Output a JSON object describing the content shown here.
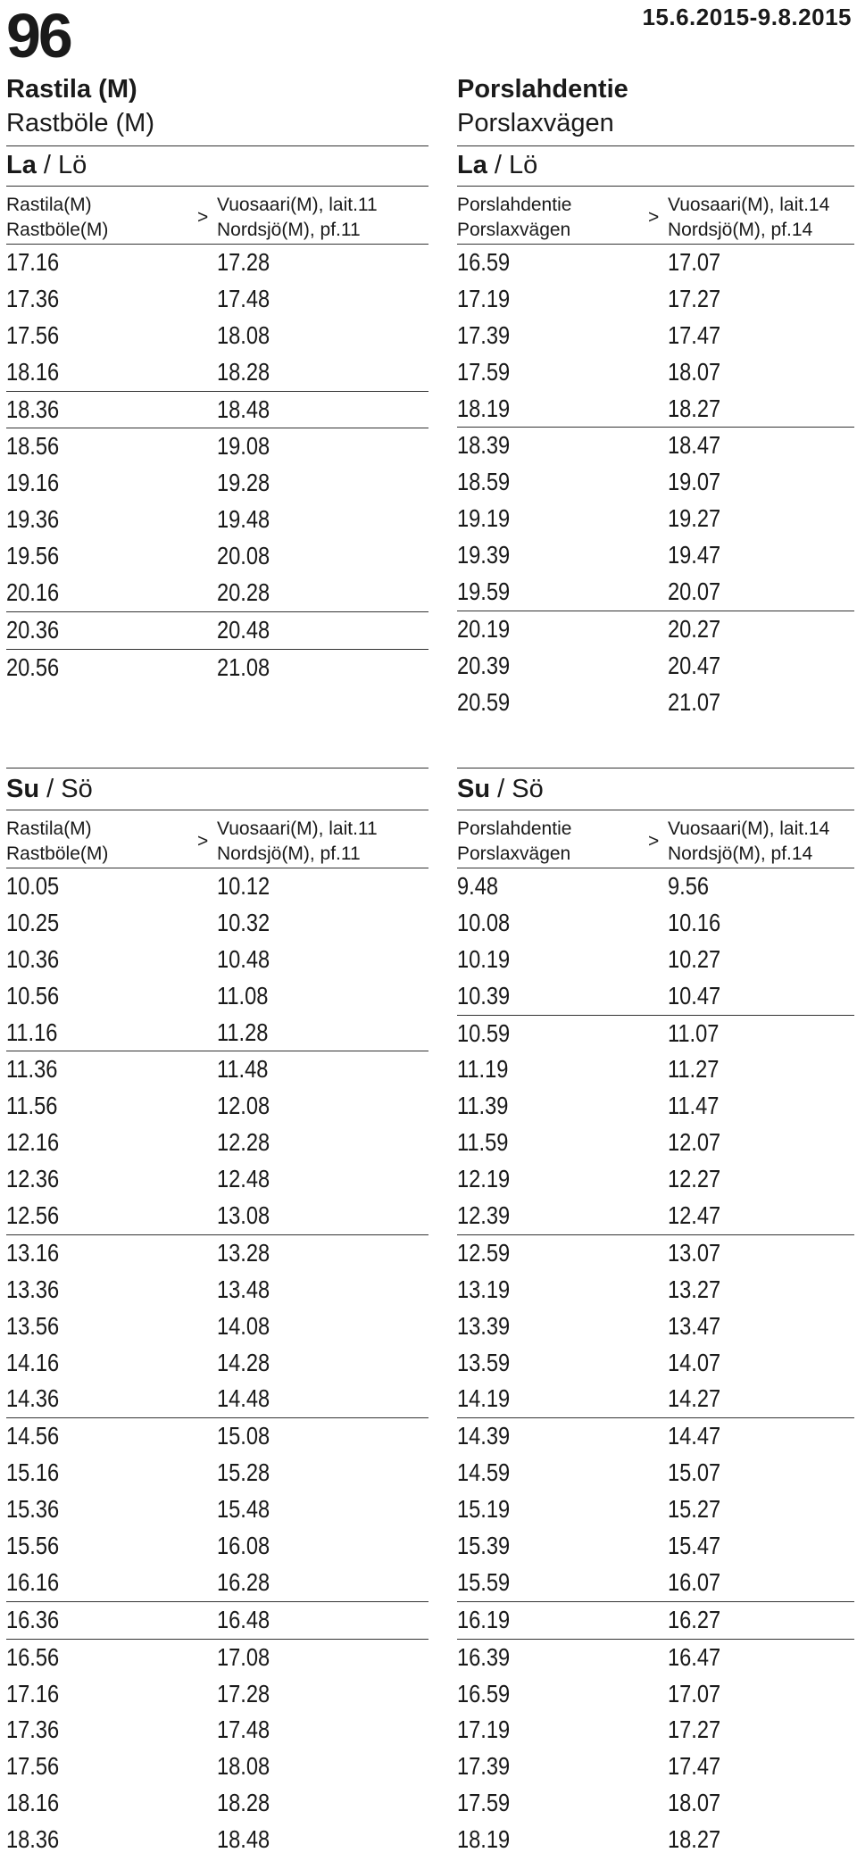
{
  "header": {
    "route": "96",
    "validity": "15.6.2015-9.8.2015"
  },
  "stops": {
    "left": {
      "name_fi": "Rastila (M)",
      "name_sv": "Rastböle (M)"
    },
    "right": {
      "name_fi": "Porslahdentie",
      "name_sv": "Porslaxvägen"
    }
  },
  "saturday": {
    "title_fi": "La",
    "title_slash": " / ",
    "title_sv": "Lö",
    "left": {
      "from_fi": "Rastila(M)",
      "from_sv": "Rastböle(M)",
      "arrow": ">",
      "to_fi": "Vuosaari(M), lait.11",
      "to_sv": "Nordsjö(M), pf.11",
      "rows": [
        [
          "17.16",
          "17.28"
        ],
        [
          "17.36",
          "17.48"
        ],
        [
          "17.56",
          "18.08"
        ],
        [
          "18.16",
          "18.28"
        ],
        [
          "18.36",
          "18.48"
        ],
        [
          "18.56",
          "19.08"
        ],
        [
          "19.16",
          "19.28"
        ],
        [
          "19.36",
          "19.48"
        ],
        [
          "19.56",
          "20.08"
        ],
        [
          "20.16",
          "20.28"
        ],
        [
          "20.36",
          "20.48"
        ],
        [
          "20.56",
          "21.08"
        ]
      ]
    },
    "right": {
      "from_fi": "Porslahdentie",
      "from_sv": "Porslaxvägen",
      "arrow": ">",
      "to_fi": "Vuosaari(M), lait.14",
      "to_sv": "Nordsjö(M), pf.14",
      "rows": [
        [
          "16.59",
          "17.07"
        ],
        [
          "17.19",
          "17.27"
        ],
        [
          "17.39",
          "17.47"
        ],
        [
          "17.59",
          "18.07"
        ],
        [
          "18.19",
          "18.27"
        ],
        [
          "18.39",
          "18.47"
        ],
        [
          "18.59",
          "19.07"
        ],
        [
          "19.19",
          "19.27"
        ],
        [
          "19.39",
          "19.47"
        ],
        [
          "19.59",
          "20.07"
        ],
        [
          "20.19",
          "20.27"
        ],
        [
          "20.39",
          "20.47"
        ],
        [
          "20.59",
          "21.07"
        ]
      ]
    }
  },
  "sunday": {
    "title_fi": "Su",
    "title_slash": " / ",
    "title_sv": "Sö",
    "left": {
      "from_fi": "Rastila(M)",
      "from_sv": "Rastböle(M)",
      "arrow": ">",
      "to_fi": "Vuosaari(M), lait.11",
      "to_sv": "Nordsjö(M), pf.11",
      "rows": [
        [
          "10.05",
          "10.12"
        ],
        [
          "10.25",
          "10.32"
        ],
        [
          "10.36",
          "10.48"
        ],
        [
          "10.56",
          "11.08"
        ],
        [
          "11.16",
          "11.28"
        ],
        [
          "11.36",
          "11.48"
        ],
        [
          "11.56",
          "12.08"
        ],
        [
          "12.16",
          "12.28"
        ],
        [
          "12.36",
          "12.48"
        ],
        [
          "12.56",
          "13.08"
        ],
        [
          "13.16",
          "13.28"
        ],
        [
          "13.36",
          "13.48"
        ],
        [
          "13.56",
          "14.08"
        ],
        [
          "14.16",
          "14.28"
        ],
        [
          "14.36",
          "14.48"
        ],
        [
          "14.56",
          "15.08"
        ],
        [
          "15.16",
          "15.28"
        ],
        [
          "15.36",
          "15.48"
        ],
        [
          "15.56",
          "16.08"
        ],
        [
          "16.16",
          "16.28"
        ],
        [
          "16.36",
          "16.48"
        ],
        [
          "16.56",
          "17.08"
        ],
        [
          "17.16",
          "17.28"
        ],
        [
          "17.36",
          "17.48"
        ],
        [
          "17.56",
          "18.08"
        ],
        [
          "18.16",
          "18.28"
        ],
        [
          "18.36",
          "18.48"
        ]
      ]
    },
    "right": {
      "from_fi": "Porslahdentie",
      "from_sv": "Porslaxvägen",
      "arrow": ">",
      "to_fi": "Vuosaari(M), lait.14",
      "to_sv": "Nordsjö(M), pf.14",
      "rows": [
        [
          " 9.48",
          " 9.56"
        ],
        [
          "10.08",
          "10.16"
        ],
        [
          "10.19",
          "10.27"
        ],
        [
          "10.39",
          "10.47"
        ],
        [
          "10.59",
          "11.07"
        ],
        [
          "11.19",
          "11.27"
        ],
        [
          "11.39",
          "11.47"
        ],
        [
          "11.59",
          "12.07"
        ],
        [
          "12.19",
          "12.27"
        ],
        [
          "12.39",
          "12.47"
        ],
        [
          "12.59",
          "13.07"
        ],
        [
          "13.19",
          "13.27"
        ],
        [
          "13.39",
          "13.47"
        ],
        [
          "13.59",
          "14.07"
        ],
        [
          "14.19",
          "14.27"
        ],
        [
          "14.39",
          "14.47"
        ],
        [
          "14.59",
          "15.07"
        ],
        [
          "15.19",
          "15.27"
        ],
        [
          "15.39",
          "15.47"
        ],
        [
          "15.59",
          "16.07"
        ],
        [
          "16.19",
          "16.27"
        ],
        [
          "16.39",
          "16.47"
        ],
        [
          "16.59",
          "17.07"
        ],
        [
          "17.19",
          "17.27"
        ],
        [
          "17.39",
          "17.47"
        ],
        [
          "17.59",
          "18.07"
        ],
        [
          "18.19",
          "18.27"
        ]
      ]
    }
  }
}
